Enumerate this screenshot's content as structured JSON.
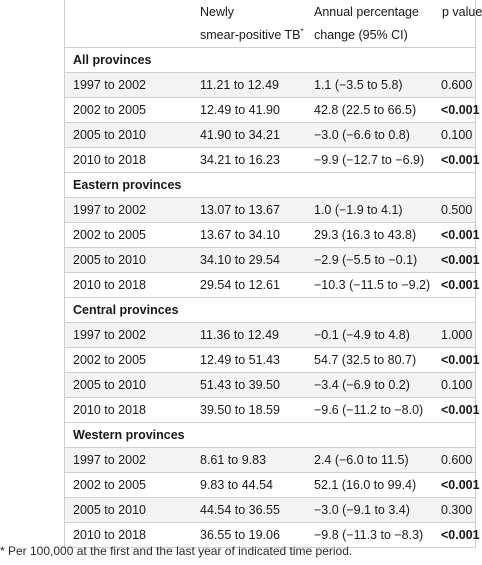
{
  "header": {
    "col1": "",
    "col2_line1": "Newly",
    "col2_line2": "smear-positive TB",
    "col2_sup": "*",
    "col3_line1": "Annual percentage",
    "col3_line2": "change (95% CI)",
    "col4": "p value"
  },
  "groups": [
    {
      "name": "All provinces",
      "rows": [
        {
          "period": "1997 to 2002",
          "rate": "11.21 to 12.49",
          "change": "1.1 (−3.5 to 5.8)",
          "p": "0.600",
          "bold": false
        },
        {
          "period": "2002 to 2005",
          "rate": "12.49 to 41.90",
          "change": "42.8 (22.5 to 66.5)",
          "p": "<0.001",
          "bold": true
        },
        {
          "period": "2005 to 2010",
          "rate": "41.90 to 34.21",
          "change": "−3.0 (−6.6 to 0.8)",
          "p": "0.100",
          "bold": false
        },
        {
          "period": "2010 to 2018",
          "rate": "34.21 to 16.23",
          "change": "−9.9 (−12.7 to −6.9)",
          "p": "<0.001",
          "bold": true
        }
      ]
    },
    {
      "name": "Eastern provinces",
      "rows": [
        {
          "period": "1997 to 2002",
          "rate": "13.07 to 13.67",
          "change": "1.0 (−1.9 to 4.1)",
          "p": "0.500",
          "bold": false
        },
        {
          "period": "2002 to 2005",
          "rate": "13.67 to 34.10",
          "change": "29.3 (16.3 to 43.8)",
          "p": "<0.001",
          "bold": true
        },
        {
          "period": "2005 to 2010",
          "rate": "34.10 to 29.54",
          "change": "−2.9 (−5.5 to −0.1)",
          "p": "<0.001",
          "bold": true
        },
        {
          "period": "2010 to 2018",
          "rate": "29.54 to 12.61",
          "change": "−10.3 (−11.5 to −9.2)",
          "p": "<0.001",
          "bold": true
        }
      ]
    },
    {
      "name": "Central provinces",
      "rows": [
        {
          "period": "1997 to 2002",
          "rate": "11.36 to 12.49",
          "change": "−0.1 (−4.9 to 4.8)",
          "p": "1.000",
          "bold": false
        },
        {
          "period": "2002 to 2005",
          "rate": "12.49 to 51.43",
          "change": "54.7 (32.5 to 80.7)",
          "p": "<0.001",
          "bold": true
        },
        {
          "period": "2005 to 2010",
          "rate": "51.43 to 39.50",
          "change": "−3.4 (−6.9 to 0.2)",
          "p": "0.100",
          "bold": false
        },
        {
          "period": "2010 to 2018",
          "rate": "39.50 to 18.59",
          "change": "−9.6 (−11.2 to −8.0)",
          "p": "<0.001",
          "bold": true
        }
      ]
    },
    {
      "name": "Western provinces",
      "rows": [
        {
          "period": "1997 to 2002",
          "rate": "8.61 to 9.83",
          "change": "2.4 (−6.0 to 11.5)",
          "p": "0.600",
          "bold": false
        },
        {
          "period": "2002 to 2005",
          "rate": "9.83 to 44.54",
          "change": "52.1 (16.0 to 99.4)",
          "p": "<0.001",
          "bold": true
        },
        {
          "period": "2005 to 2010",
          "rate": "44.54 to 36.55",
          "change": "−3.0 (−9.1 to 3.4)",
          "p": "0.300",
          "bold": false
        },
        {
          "period": "2010 to 2018",
          "rate": "36.55 to 19.06",
          "change": "−9.8 (−11.3 to −8.3)",
          "p": "<0.001",
          "bold": true
        }
      ]
    }
  ],
  "footnote": "* Per 100,000 at the first and the last year of indicated time period."
}
